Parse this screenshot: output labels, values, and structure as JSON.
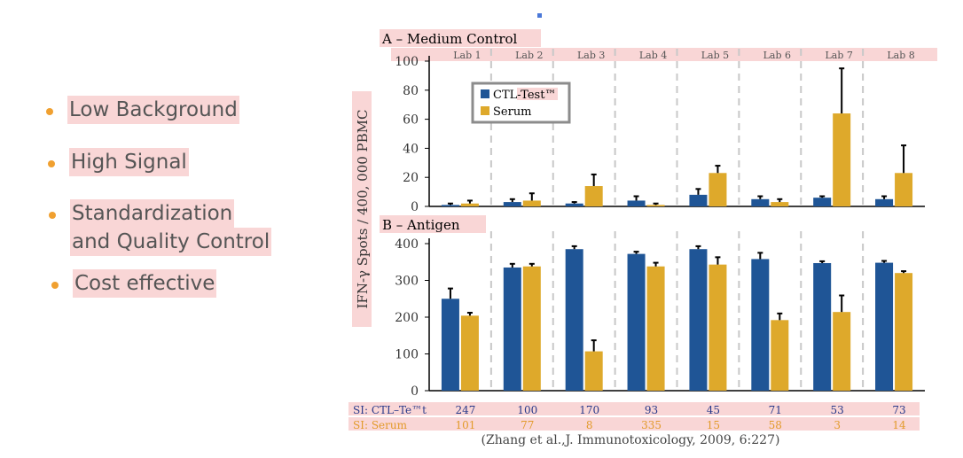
{
  "bullets": [
    {
      "lines": [
        "Low Background"
      ]
    },
    {
      "lines": [
        "High Signal"
      ]
    },
    {
      "lines": [
        "Standardization",
        "and Quality Control"
      ]
    },
    {
      "lines": [
        "Cost effective"
      ]
    }
  ],
  "chart_data": {
    "type": "bar",
    "ylabel": "IFN-γ Spots / 400, 000 PBMC",
    "categories": [
      "Lab 1",
      "Lab 2",
      "Lab 3",
      "Lab 4",
      "Lab 5",
      "Lab 6",
      "Lab 7",
      "Lab 8"
    ],
    "legend": {
      "position": "top-left",
      "entries": [
        "CTL-Test™",
        "Serum"
      ]
    },
    "colors": {
      "ctl": "#1f5596",
      "serum": "#dea92b",
      "legend_border": "#8c8c8c",
      "highlight": "#f9d6d6",
      "axis": "#000000"
    },
    "panels": [
      {
        "title": "A  – Medium Control",
        "ylim": [
          0,
          100
        ],
        "yticks": [
          "0",
          "20",
          "40",
          "60",
          "80",
          "100"
        ],
        "series": [
          {
            "name": "CTL-Test™",
            "values": [
              1,
              3,
              2,
              4,
              8,
              5,
              6,
              5
            ],
            "errors": [
              1,
              2,
              1,
              3,
              4,
              2,
              1,
              2
            ]
          },
          {
            "name": "Serum",
            "values": [
              2,
              4,
              14,
              1,
              23,
              3,
              64,
              23
            ],
            "errors": [
              2,
              5,
              8,
              1,
              5,
              2,
              31,
              19
            ]
          }
        ]
      },
      {
        "title": "B  – Antigen",
        "ylim": [
          0,
          400
        ],
        "yticks": [
          "0",
          "100",
          "200",
          "300",
          "400"
        ],
        "series": [
          {
            "name": "CTL-Test™",
            "values": [
              250,
              335,
              385,
              372,
              385,
              358,
              347,
              348
            ],
            "errors": [
              28,
              10,
              8,
              6,
              8,
              17,
              5,
              5
            ]
          },
          {
            "name": "Serum",
            "values": [
              204,
              338,
              107,
              338,
              343,
              192,
              214,
              320
            ],
            "errors": [
              8,
              7,
              30,
              10,
              20,
              18,
              45,
              5
            ]
          }
        ]
      }
    ],
    "si_table": {
      "rows": [
        {
          "label": "SI: CTL–Te™t",
          "values": [
            "247",
            "100",
            "170",
            "93",
            "45",
            "71",
            "53",
            "73"
          ]
        },
        {
          "label": "SI: Serum",
          "values": [
            "101",
            "77",
            "8",
            "335",
            "15",
            "58",
            "3",
            "14"
          ]
        }
      ]
    },
    "citation": "(Zhang et al.,J. Immunotoxicology, 2009, 6:227)"
  }
}
